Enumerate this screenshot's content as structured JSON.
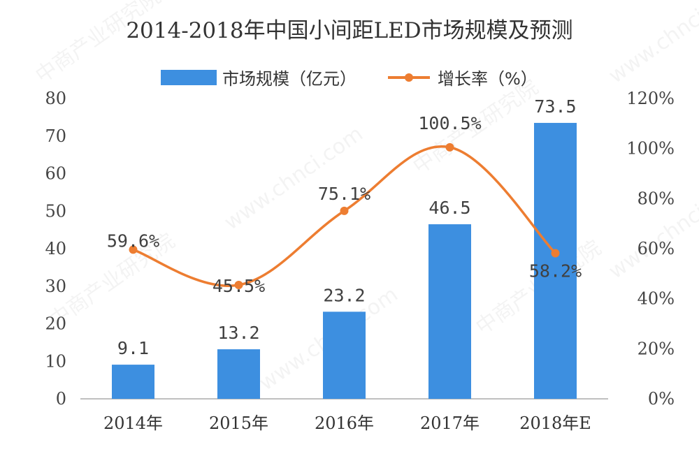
{
  "chart_data": {
    "type": "bar+line",
    "title": "2014-2018年中国小间距LED市场规模及预测",
    "categories": [
      "2014年",
      "2015年",
      "2016年",
      "2017年",
      "2018年E"
    ],
    "series": [
      {
        "name": "市场规模（亿元）",
        "type": "bar",
        "axis": "left",
        "values": [
          9.1,
          13.2,
          23.2,
          46.5,
          73.5
        ],
        "labels": [
          "9.1",
          "13.2",
          "23.2",
          "46.5",
          "73.5"
        ],
        "color": "#3d8fe0"
      },
      {
        "name": "增长率（%）",
        "type": "line",
        "axis": "right",
        "values": [
          59.6,
          45.5,
          75.1,
          100.5,
          58.2
        ],
        "labels": [
          "59.6%",
          "45.5%",
          "75.1%",
          "100.5%",
          "58.2%"
        ],
        "color": "#ed7d31"
      }
    ],
    "y_left": {
      "min": 0,
      "max": 80,
      "step": 10,
      "ticks": [
        "0",
        "10",
        "20",
        "30",
        "40",
        "50",
        "60",
        "70",
        "80"
      ]
    },
    "y_right": {
      "min": 0,
      "max": 120,
      "step": 20,
      "ticks": [
        "0%",
        "20%",
        "40%",
        "60%",
        "80%",
        "100%",
        "120%"
      ]
    },
    "grid": false,
    "legend_position": "top-center",
    "watermark_text": [
      "中商产业研究院",
      "www.chnci.com"
    ]
  }
}
